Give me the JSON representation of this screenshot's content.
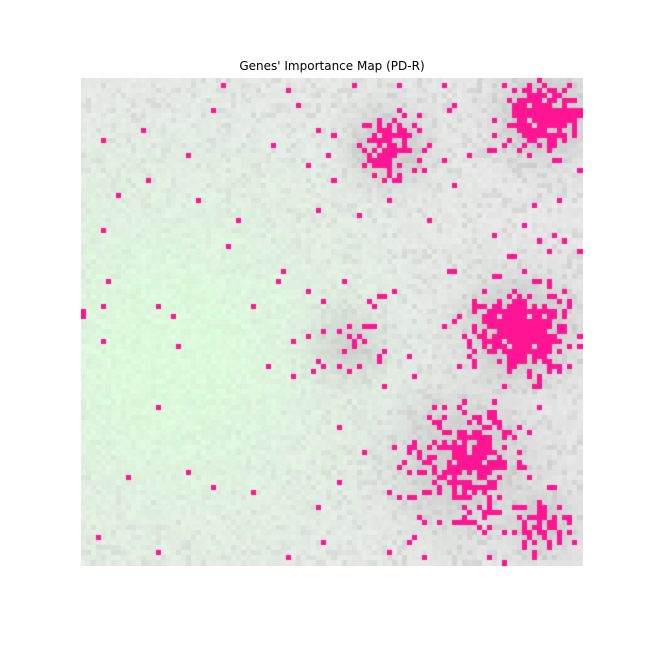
{
  "chart_data": {
    "type": "heatmap",
    "title": "Genes' Importance Map (PD-R)",
    "xlabel": "",
    "ylabel": "",
    "axes_visible": false,
    "grid": false,
    "legend": "none",
    "colormap": {
      "low": "#dcfadc",
      "mid": "#e6e6e6",
      "high": "#c8c8c8",
      "max": "#ff1493"
    },
    "grid_cells": {
      "cols": 100,
      "rows": 97
    },
    "hotspots": [
      {
        "name": "top-right",
        "cx": 92,
        "cy": 7,
        "spread": 6,
        "intensity": 1.0
      },
      {
        "name": "upper-middle",
        "cx": 61,
        "cy": 13,
        "spread": 5,
        "intensity": 0.9
      },
      {
        "name": "middle-right",
        "cx": 87,
        "cy": 50,
        "spread": 7,
        "intensity": 1.0
      },
      {
        "name": "middle",
        "cx": 53,
        "cy": 53,
        "spread": 5,
        "intensity": 0.55
      },
      {
        "name": "lower-center-right",
        "cx": 76,
        "cy": 76,
        "spread": 9,
        "intensity": 0.75
      },
      {
        "name": "bottom-right",
        "cx": 91,
        "cy": 88,
        "spread": 5,
        "intensity": 0.7
      }
    ],
    "low_region": {
      "name": "left-green",
      "cx": 18,
      "cy": 55,
      "spread": 28
    }
  }
}
